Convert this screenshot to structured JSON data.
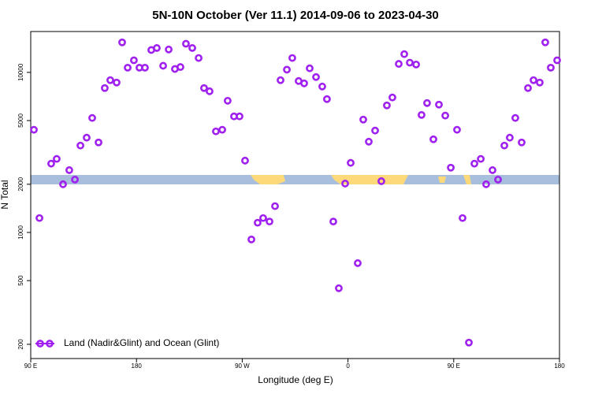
{
  "chart_data": {
    "type": "scatter",
    "title": "5N-10N October (Ver 11.1)   2014-09-06 to 2023-04-30",
    "xlabel": "Longitude (deg E)",
    "ylabel": "N Total",
    "ylog": true,
    "legend": "bottom-left",
    "xlim": [
      90,
      540
    ],
    "xticks": [
      {
        "value": 90,
        "label": "90 E"
      },
      {
        "value": 180,
        "label": "180"
      },
      {
        "value": 270,
        "label": "90 W"
      },
      {
        "value": 360,
        "label": "0"
      },
      {
        "value": 450,
        "label": "90 E"
      },
      {
        "value": 540,
        "label": "180"
      }
    ],
    "ylim": [
      163,
      18000
    ],
    "yticks": [
      200,
      500,
      1000,
      2000,
      5000,
      10000
    ],
    "series": [
      {
        "name": "Land (Nadir&Glint) and Ocean (Glint)",
        "color": "#a020f0",
        "x": [
          92.7,
          97.4,
          107.4,
          112.1,
          117.5,
          122.8,
          127.6,
          132.3,
          137.6,
          142.3,
          147.7,
          153.0,
          157.7,
          163.1,
          167.8,
          172.5,
          177.8,
          182.5,
          187.2,
          192.6,
          197.3,
          202.7,
          207.4,
          212.7,
          217.4,
          222.1,
          227.5,
          232.9,
          237.5,
          242.2,
          247.6,
          253.0,
          257.6,
          263.0,
          267.7,
          272.4,
          277.8,
          283.1,
          287.8,
          293.2,
          297.9,
          302.6,
          308.0,
          312.6,
          318.0,
          322.7,
          327.4,
          332.8,
          338.1,
          342.1,
          347.5,
          352.2,
          357.6,
          362.3,
          368.3,
          373.0,
          377.7,
          383.1,
          388.4,
          393.1,
          397.8,
          403.2,
          407.9,
          412.6,
          418.0,
          422.6,
          427.3,
          432.7,
          437.4,
          442.8,
          447.5,
          452.8,
          457.5,
          462.9,
          467.6,
          473.0,
          477.6,
          483.0,
          487.7,
          493.1,
          497.7,
          502.4,
          507.8,
          513.2,
          517.9,
          523.2,
          527.9,
          532.6,
          538.0
        ],
        "values": [
          4380,
          1230,
          2690,
          2880,
          2000,
          2450,
          2140,
          3490,
          3910,
          5190,
          3650,
          7980,
          8940,
          8640,
          15400,
          10700,
          11900,
          10700,
          10700,
          13800,
          14200,
          11000,
          13900,
          10500,
          10800,
          15100,
          14200,
          12300,
          7980,
          7620,
          4280,
          4380,
          6650,
          5310,
          5310,
          2810,
          904,
          1150,
          1230,
          1170,
          1460,
          8940,
          10400,
          12300,
          8830,
          8540,
          10600,
          9350,
          8160,
          6810,
          1170,
          448,
          2020,
          2720,
          643,
          5070,
          3690,
          4330,
          2090,
          6220,
          6970,
          11300,
          13000,
          11500,
          11200,
          5420,
          6430,
          3820,
          6290,
          5370,
          2540,
          4380,
          1230,
          205,
          2690,
          2880,
          2000,
          2450,
          2140,
          3490,
          3910,
          5190,
          3650,
          7980,
          8940,
          8640,
          15400,
          10700,
          11900
        ]
      }
    ]
  }
}
